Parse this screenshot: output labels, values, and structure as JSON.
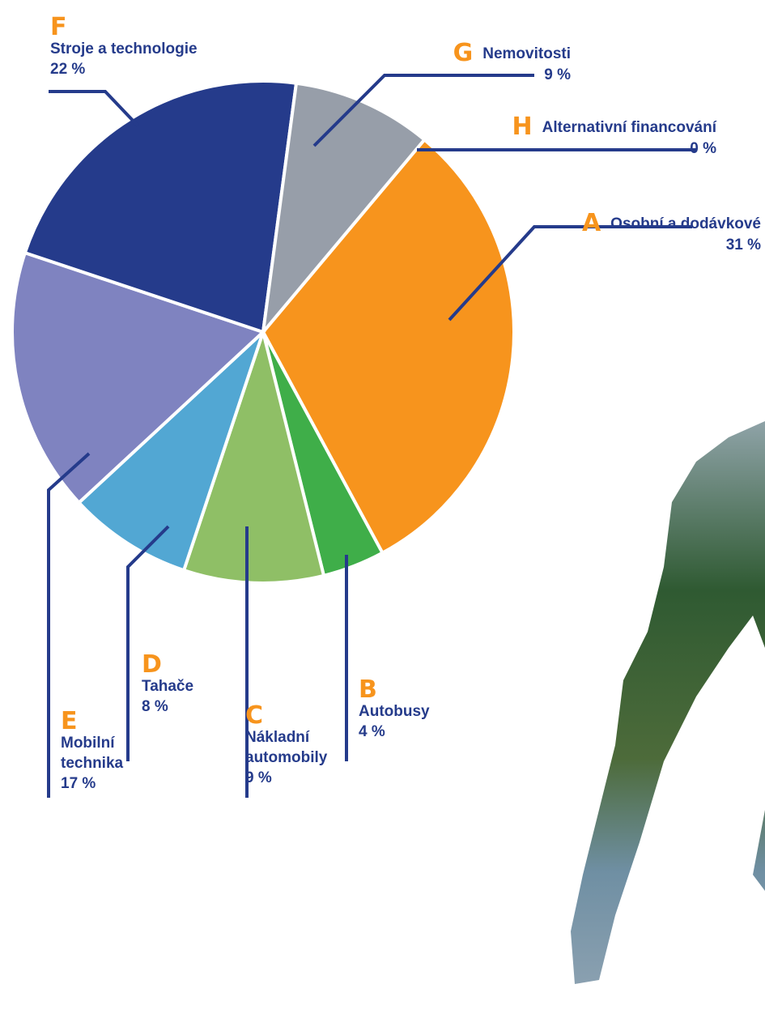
{
  "chart_data": {
    "type": "pie",
    "letters": [
      "A",
      "B",
      "C",
      "D",
      "E",
      "F",
      "G",
      "H"
    ],
    "categories": [
      "Osobní a dodávkové",
      "Autobusy",
      "Nákladní automobily",
      "Tahače",
      "Mobilní technika",
      "Stroje a technologie",
      "Nemovitosti",
      "Alternativní financování"
    ],
    "values": [
      31,
      4,
      9,
      8,
      17,
      22,
      9,
      0
    ],
    "value_labels": [
      "31 %",
      "4 %",
      "9 %",
      "8 %",
      "17 %",
      "22 %",
      "9 %",
      "0 %"
    ],
    "colors": [
      "#f7941d",
      "#3fae49",
      "#8fbf66",
      "#52a7d3",
      "#7f83c0",
      "#253b8b",
      "#979ea9",
      "#2f3a4f"
    ]
  }
}
